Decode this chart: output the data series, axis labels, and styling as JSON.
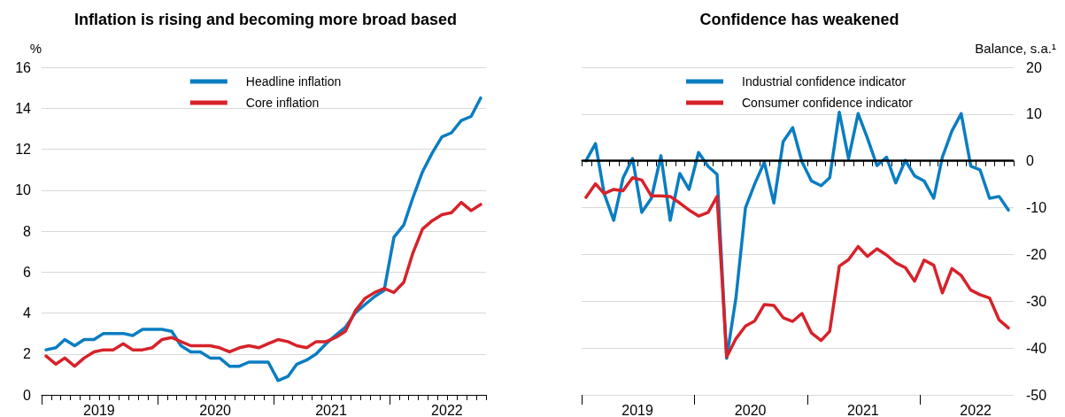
{
  "chart_data": [
    {
      "type": "line",
      "title": "Inflation is rising and becoming more broad based",
      "ylabel": "%",
      "x": [
        "2019-01-15",
        "2019-02-15",
        "2019-03-15",
        "2019-04-15",
        "2019-05-15",
        "2019-06-15",
        "2019-07-15",
        "2019-08-15",
        "2019-09-15",
        "2019-10-15",
        "2019-11-15",
        "2019-12-15",
        "2020-01-15",
        "2020-02-15",
        "2020-03-15",
        "2020-04-15",
        "2020-05-15",
        "2020-06-15",
        "2020-07-15",
        "2020-08-15",
        "2020-09-15",
        "2020-10-15",
        "2020-11-15",
        "2020-12-15",
        "2021-01-15",
        "2021-02-15",
        "2021-03-15",
        "2021-04-15",
        "2021-05-15",
        "2021-06-15",
        "2021-07-15",
        "2021-08-15",
        "2021-09-15",
        "2021-10-15",
        "2021-11-15",
        "2021-12-15",
        "2022-01-15",
        "2022-02-15",
        "2022-03-15",
        "2022-04-15",
        "2022-05-15",
        "2022-06-15",
        "2022-07-15",
        "2022-08-15",
        "2022-09-15",
        "2022-10-15"
      ],
      "series": [
        {
          "name": "Headline inflation",
          "color": "#0a7dc2",
          "values": [
            2.2,
            2.3,
            2.7,
            2.4,
            2.7,
            2.7,
            3.0,
            3.0,
            3.0,
            2.9,
            3.2,
            3.2,
            3.2,
            3.1,
            2.4,
            2.1,
            2.1,
            1.8,
            1.8,
            1.4,
            1.4,
            1.6,
            1.6,
            1.6,
            0.7,
            0.9,
            1.5,
            1.7,
            2.0,
            2.5,
            2.9,
            3.3,
            4.0,
            4.4,
            4.8,
            5.1,
            7.7,
            8.3,
            9.6,
            10.9,
            11.8,
            12.6,
            12.8,
            13.4,
            13.6,
            14.5
          ]
        },
        {
          "name": "Core inflation",
          "color": "#d7222a",
          "values": [
            1.9,
            1.5,
            1.8,
            1.4,
            1.8,
            2.1,
            2.2,
            2.2,
            2.5,
            2.2,
            2.2,
            2.3,
            2.7,
            2.8,
            2.6,
            2.4,
            2.4,
            2.4,
            2.3,
            2.1,
            2.3,
            2.4,
            2.3,
            2.5,
            2.7,
            2.6,
            2.4,
            2.3,
            2.6,
            2.6,
            2.8,
            3.1,
            4.1,
            4.7,
            5.0,
            5.2,
            5.0,
            5.5,
            6.9,
            8.1,
            8.5,
            8.8,
            8.9,
            9.4,
            9.0,
            9.3
          ]
        }
      ],
      "xlim": [
        "2019-01-01",
        "2022-11-01"
      ],
      "xticks": [
        {
          "value": "2019-07-01",
          "label": "2019"
        },
        {
          "value": "2020-07-01",
          "label": "2020"
        },
        {
          "value": "2021-07-01",
          "label": "2021"
        },
        {
          "value": "2022-07-01",
          "label": "2022"
        }
      ],
      "ylim": [
        0,
        16
      ],
      "yticks": [
        0,
        2,
        4,
        6,
        8,
        10,
        12,
        14,
        16
      ],
      "grid": "y",
      "legend": "top",
      "marker": "none",
      "line_style": "solid"
    },
    {
      "type": "line",
      "title": "Confidence has weakened",
      "y2label": "Balance, s.a.¹",
      "x": [
        "2019-01-15",
        "2019-02-15",
        "2019-03-15",
        "2019-04-15",
        "2019-05-15",
        "2019-06-15",
        "2019-07-15",
        "2019-08-15",
        "2019-09-15",
        "2019-10-15",
        "2019-11-15",
        "2019-12-15",
        "2020-01-15",
        "2020-02-15",
        "2020-03-15",
        "2020-04-15",
        "2020-05-15",
        "2020-06-15",
        "2020-07-15",
        "2020-08-15",
        "2020-09-15",
        "2020-10-15",
        "2020-11-15",
        "2020-12-15",
        "2021-01-15",
        "2021-02-15",
        "2021-03-15",
        "2021-04-15",
        "2021-05-15",
        "2021-06-15",
        "2021-07-15",
        "2021-08-15",
        "2021-09-15",
        "2021-10-15",
        "2021-11-15",
        "2021-12-15",
        "2022-01-15",
        "2022-02-15",
        "2022-03-15",
        "2022-04-15",
        "2022-05-15",
        "2022-06-15",
        "2022-07-15",
        "2022-08-15",
        "2022-09-15",
        "2022-10-15"
      ],
      "series": [
        {
          "name": "Industrial confidence indicator",
          "color": "#0a7dc2",
          "axis": "y2",
          "values": [
            0.0,
            3.7,
            -7,
            -12.7,
            -3.7,
            0.5,
            -11,
            -8,
            1.1,
            -12.7,
            -2.7,
            -6.1,
            1.8,
            -1.2,
            -2.9,
            -42.2,
            -29.3,
            -10,
            -4.9,
            -0.3,
            -9,
            4.1,
            7.1,
            -0.2,
            -4.3,
            -5.3,
            -3.6,
            10.4,
            0.5,
            10.1,
            4.9,
            -1,
            0.8,
            -4.7,
            0.1,
            -3.2,
            -4.3,
            -8,
            0.8,
            6.4,
            10.1,
            -1.1,
            -1.9,
            -8,
            -7.6,
            -10.5
          ]
        },
        {
          "name": "Consumer confidence indicator",
          "color": "#d7222a",
          "axis": "y2",
          "values": [
            -7.8,
            -4.9,
            -7,
            -6.1,
            -6.4,
            -3.6,
            -4.1,
            -7.5,
            -7.5,
            -7.6,
            -9,
            -10.5,
            -11.8,
            -11,
            -7.6,
            -41.9,
            -38,
            -35.3,
            -34.2,
            -30.7,
            -30.9,
            -33.5,
            -34.3,
            -32.6,
            -36.8,
            -38.4,
            -36.4,
            -22.5,
            -21.1,
            -18.3,
            -20.4,
            -18.8,
            -20.1,
            -21.8,
            -22.8,
            -25.7,
            -21.2,
            -22.3,
            -28.2,
            -23,
            -24.5,
            -27.6,
            -28.6,
            -29.3,
            -34,
            -35.7
          ]
        }
      ],
      "xlim": [
        "2019-01-01",
        "2022-11-01"
      ],
      "xticks": [
        {
          "value": "2019-07-01",
          "label": "2019"
        },
        {
          "value": "2020-07-01",
          "label": "2020"
        },
        {
          "value": "2021-07-01",
          "label": "2021"
        },
        {
          "value": "2022-07-01",
          "label": "2022"
        }
      ],
      "y2lim": [
        -50,
        20
      ],
      "y2ticks": [
        -50,
        -40,
        -30,
        -20,
        -10,
        0,
        10,
        20
      ],
      "ref_lines": [
        {
          "axis": "y2",
          "value": 0,
          "color": "#000000"
        }
      ],
      "grid": "y",
      "legend": "top",
      "marker": "none",
      "line_style": "solid"
    }
  ]
}
